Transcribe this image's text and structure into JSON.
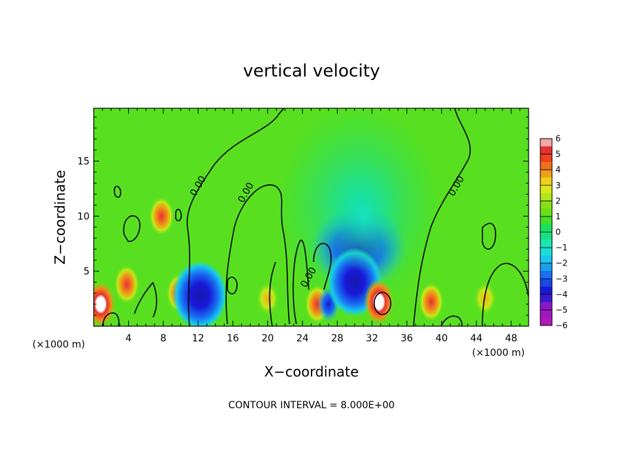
{
  "chart_data": {
    "type": "heatmap",
    "title": "vertical velocity",
    "xlabel": "X−coordinate",
    "ylabel": "Z−coordinate",
    "x_unit_left": "(×1000 m)",
    "x_unit_right": "(×1000 m)",
    "xlim": [
      0,
      50
    ],
    "ylim": [
      0,
      19.8
    ],
    "x_ticks": [
      4,
      8,
      12,
      16,
      20,
      24,
      28,
      32,
      36,
      40,
      44,
      48
    ],
    "y_ticks": [
      5,
      10,
      15
    ],
    "contour_interval_text": "CONTOUR INTERVAL = 8.000E+00",
    "contour_labels": [
      {
        "text": "0.00",
        "x": 12.3,
        "y": 12.6
      },
      {
        "text": "0.00",
        "x": 17.8,
        "y": 12.0
      },
      {
        "text": "0.00",
        "x": 25.0,
        "y": 4.3
      },
      {
        "text": "0.00",
        "x": 42.0,
        "y": 12.6
      }
    ],
    "colorbar": {
      "min": -6,
      "max": 6,
      "labels": [
        "6",
        "5",
        "4",
        "3",
        "2",
        "1",
        "0",
        "−1",
        "−2",
        "−3",
        "−4",
        "−5",
        "−6"
      ],
      "colors": [
        "#f0a8a8",
        "#e83030",
        "#f05018",
        "#f09018",
        "#f0d018",
        "#c8e818",
        "#68e018",
        "#18e060",
        "#18e8b0",
        "#18c8f0",
        "#1870f0",
        "#1818d8",
        "#8818c8"
      ]
    },
    "features": [
      {
        "x": 0.8,
        "z": 2.0,
        "w": 9.0
      },
      {
        "x": 3.8,
        "z": 3.8,
        "w": 3.5
      },
      {
        "x": 7.8,
        "z": 10.0,
        "w": 3.0
      },
      {
        "x": 9.8,
        "z": 3.0,
        "w": 4.0
      },
      {
        "x": 12.2,
        "z": 2.8,
        "w": -5.0
      },
      {
        "x": 20.0,
        "z": 2.5,
        "w": 1.5
      },
      {
        "x": 25.7,
        "z": 2.0,
        "w": 5.5
      },
      {
        "x": 27.0,
        "z": 2.0,
        "w": -3.0
      },
      {
        "x": 30.0,
        "z": 4.0,
        "w": -4.5
      },
      {
        "x": 32.8,
        "z": 2.2,
        "w": 7.0
      },
      {
        "x": 31.0,
        "z": 10.0,
        "w": -1.5
      },
      {
        "x": 38.8,
        "z": 2.2,
        "w": 3.5
      },
      {
        "x": 45.0,
        "z": 2.5,
        "w": 1.5
      }
    ]
  }
}
